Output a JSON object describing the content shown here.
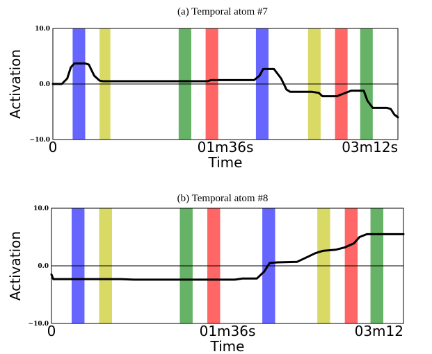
{
  "chart_data": [
    {
      "type": "line",
      "title": "(a) Temporal atom #7",
      "xlabel": "Time",
      "ylabel": "Activation",
      "ylim": [
        -10.0,
        10.0
      ],
      "yticks": [
        "10.0",
        "0.0",
        "−10.0"
      ],
      "xticks": [
        "0",
        "01m36s",
        "03m12s"
      ],
      "xlim": [
        0,
        192
      ],
      "zero_line": true,
      "legend": "none",
      "grid": false,
      "colors": {
        "blue": "#6666ff",
        "yellow": "#d9d966",
        "green": "#66b266",
        "red": "#ff6666",
        "line": "#000000"
      },
      "bands": [
        {
          "color": "blue",
          "x0": 11,
          "x1": 18
        },
        {
          "color": "yellow",
          "x0": 26,
          "x1": 32
        },
        {
          "color": "green",
          "x0": 70,
          "x1": 77
        },
        {
          "color": "red",
          "x0": 85,
          "x1": 92
        },
        {
          "color": "blue",
          "x0": 113,
          "x1": 120
        },
        {
          "color": "yellow",
          "x0": 142,
          "x1": 149
        },
        {
          "color": "red",
          "x0": 157,
          "x1": 164
        },
        {
          "color": "green",
          "x0": 171,
          "x1": 178
        }
      ],
      "series": [
        {
          "x": [
            0,
            5,
            8,
            10,
            12,
            18,
            20,
            23,
            26,
            28,
            40,
            70,
            86,
            88,
            90,
            112,
            115,
            117,
            123,
            127,
            130,
            132,
            141,
            144,
            148,
            150,
            156,
            158,
            162,
            166,
            170,
            173,
            175,
            178,
            182,
            186,
            188,
            190,
            192
          ],
          "y": [
            0.0,
            0.0,
            1.0,
            3.0,
            3.7,
            3.7,
            3.5,
            1.5,
            0.6,
            0.5,
            0.5,
            0.5,
            0.5,
            0.7,
            0.7,
            0.7,
            1.5,
            2.7,
            2.7,
            1.0,
            -1.0,
            -1.4,
            -1.4,
            -1.4,
            -1.6,
            -2.2,
            -2.2,
            -2.2,
            -1.7,
            -1.2,
            -1.2,
            -1.2,
            -3.0,
            -4.3,
            -4.3,
            -4.3,
            -4.5,
            -5.5,
            -6.0
          ]
        }
      ]
    },
    {
      "type": "line",
      "title": "(b) Temporal atom #8",
      "xlabel": "Time",
      "ylabel": "Activation",
      "ylim": [
        -10.0,
        10.0
      ],
      "yticks": [
        "10.0",
        "0.0",
        "−10.0"
      ],
      "xticks": [
        "0",
        "01m36s",
        "03m12"
      ],
      "xlim": [
        0,
        192
      ],
      "zero_line": true,
      "legend": "none",
      "grid": false,
      "colors": {
        "blue": "#6666ff",
        "yellow": "#d9d966",
        "green": "#66b266",
        "red": "#ff6666",
        "line": "#000000"
      },
      "bands": [
        {
          "color": "blue",
          "x0": 11,
          "x1": 18
        },
        {
          "color": "yellow",
          "x0": 26,
          "x1": 33
        },
        {
          "color": "green",
          "x0": 70,
          "x1": 77
        },
        {
          "color": "red",
          "x0": 85,
          "x1": 92
        },
        {
          "color": "blue",
          "x0": 115,
          "x1": 122
        },
        {
          "color": "yellow",
          "x0": 145,
          "x1": 152
        },
        {
          "color": "red",
          "x0": 160,
          "x1": 167
        },
        {
          "color": "green",
          "x0": 174,
          "x1": 181
        }
      ],
      "series": [
        {
          "x": [
            0,
            1,
            10,
            30,
            38,
            45,
            90,
            100,
            104,
            112,
            116,
            119,
            123,
            134,
            138,
            144,
            148,
            155,
            160,
            165,
            168,
            172,
            180,
            192
          ],
          "y": [
            -1.5,
            -2.3,
            -2.3,
            -2.3,
            -2.3,
            -2.4,
            -2.4,
            -2.4,
            -2.2,
            -2.2,
            -1.0,
            0.5,
            0.6,
            0.7,
            1.3,
            2.2,
            2.6,
            2.8,
            3.2,
            3.9,
            5.0,
            5.5,
            5.5,
            5.5
          ]
        }
      ]
    }
  ]
}
